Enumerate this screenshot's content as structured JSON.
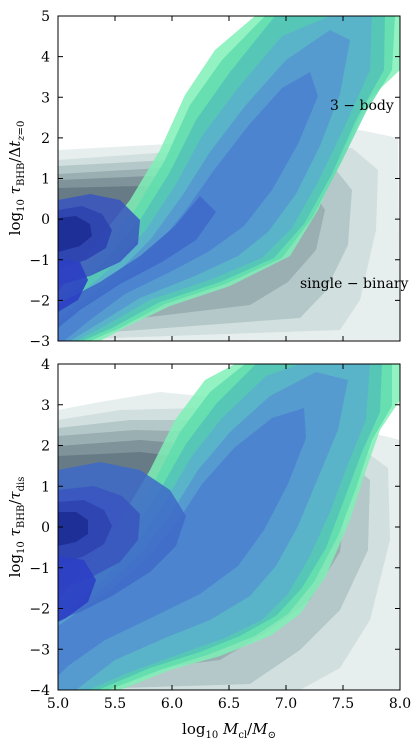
{
  "chart_data": [
    {
      "type": "contour",
      "ylabel": "log10 τBHB/Δt_{z=0}",
      "xlim": [
        5.0,
        8.0
      ],
      "ylim": [
        -3,
        5
      ],
      "xticks": [
        "5.0",
        "5.5",
        "6.0",
        "6.5",
        "7.0",
        "7.5",
        "8.0"
      ],
      "yticks": [
        "5",
        "4",
        "3",
        "2",
        "1",
        "0",
        "−1",
        "−2",
        "−3"
      ],
      "annotations": [
        "3 − body",
        "single − binary"
      ],
      "series": [
        {
          "name": "3 − body",
          "ridge": [
            [
              5.0,
              -2.6
            ],
            [
              5.5,
              -1.5
            ],
            [
              6.0,
              -0.5
            ],
            [
              6.5,
              1.0
            ],
            [
              7.0,
              3.0
            ],
            [
              7.4,
              5.0
            ]
          ]
        },
        {
          "name": "single − binary",
          "peak": [
            5.0,
            -0.3
          ],
          "extent_x": [
            5.0,
            8.0
          ],
          "extent_y": [
            -3.0,
            1.8
          ]
        }
      ]
    },
    {
      "type": "contour",
      "ylabel": "log10 τBHB/τdis",
      "xlabel": "log10 Mcl/M⊙",
      "xlim": [
        5.0,
        8.0
      ],
      "ylim": [
        -4,
        4
      ],
      "xticks": [
        "5.0",
        "5.5",
        "6.0",
        "6.5",
        "7.0",
        "7.5",
        "8.0"
      ],
      "yticks": [
        "4",
        "3",
        "2",
        "1",
        "0",
        "−1",
        "−2",
        "−3",
        "−4"
      ],
      "series": [
        {
          "name": "3 − body",
          "ridge": [
            [
              5.0,
              -2.0
            ],
            [
              5.5,
              -1.0
            ],
            [
              6.0,
              0.0
            ],
            [
              6.5,
              1.5
            ],
            [
              7.0,
              3.0
            ],
            [
              7.5,
              4.0
            ]
          ]
        },
        {
          "name": "single − binary",
          "peak": [
            5.0,
            -0.5
          ],
          "extent_x": [
            5.0,
            8.0
          ],
          "extent_y": [
            -4.0,
            2.9
          ]
        }
      ]
    }
  ]
}
